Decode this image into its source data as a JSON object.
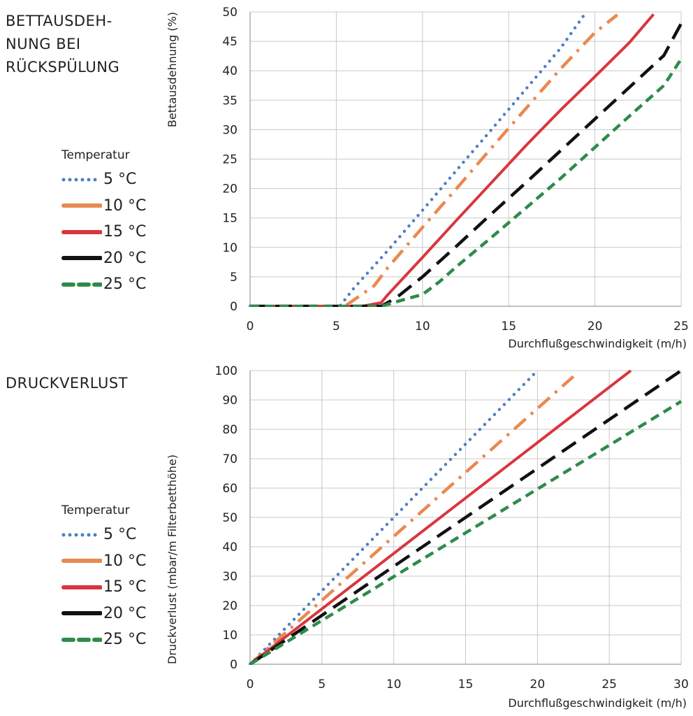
{
  "sections": [
    {
      "title": "BETTAUSDEH-\nNUNG BEI\nRÜCKSPÜLUNG",
      "legend_title": "Temperatur",
      "legend": [
        "5 °C",
        "10 °C",
        "15 °C",
        "20 °C",
        "25 °C"
      ]
    },
    {
      "title": "DRUCKVERLUST",
      "legend_title": "Temperatur",
      "legend": [
        "5 °C",
        "10 °C",
        "15 °C",
        "20 °C",
        "25 °C"
      ]
    }
  ],
  "styles": [
    {
      "color": "#4f7fc0",
      "dash": "dot"
    },
    {
      "color": "#e9894f",
      "dash": "dashdot"
    },
    {
      "color": "#d9363e",
      "dash": "solid"
    },
    {
      "color": "#111111",
      "dash": "dash"
    },
    {
      "color": "#2e8b4a",
      "dash": "shortdash"
    }
  ],
  "chart_data": [
    {
      "type": "line",
      "xlabel": "Durchflußgeschwindigkeit (m/h)",
      "ylabel": "Bettausdehnung (%)",
      "xlim": [
        0,
        25
      ],
      "ylim": [
        0,
        50
      ],
      "xticks": [
        0,
        5,
        10,
        15,
        20,
        25
      ],
      "yticks": [
        0,
        5,
        10,
        15,
        20,
        25,
        30,
        35,
        40,
        45,
        50
      ],
      "grid": true,
      "series": [
        {
          "name": "5 °C",
          "x": [
            0,
            5.2,
            6,
            8,
            10,
            12,
            14,
            16,
            18,
            19.5
          ],
          "y": [
            0,
            0,
            3,
            9.5,
            16.3,
            23.2,
            30,
            36.9,
            43.8,
            50
          ]
        },
        {
          "name": "10 °C",
          "x": [
            0,
            5.5,
            7.2,
            8,
            10,
            12,
            14,
            16,
            18,
            20,
            21.3
          ],
          "y": [
            0,
            0,
            3.5,
            6.6,
            13.4,
            20.1,
            26.9,
            33.6,
            40.3,
            46.5,
            49.5
          ]
        },
        {
          "name": "15 °C",
          "x": [
            0,
            6.5,
            7.6,
            8,
            10,
            12,
            14,
            16,
            18,
            20,
            22,
            23.4
          ],
          "y": [
            0,
            0,
            0.6,
            2,
            8.3,
            14.7,
            21,
            27.3,
            33.3,
            39,
            44.8,
            49.6
          ]
        },
        {
          "name": "20 °C",
          "x": [
            0,
            7.6,
            8.5,
            10,
            12,
            14,
            16,
            18,
            20,
            22,
            24,
            25
          ],
          "y": [
            0,
            0,
            1.5,
            5,
            10.3,
            15.7,
            21,
            26.4,
            31.8,
            37.2,
            42.6,
            48
          ]
        },
        {
          "name": "25 °C",
          "x": [
            0,
            7.6,
            9,
            10,
            11,
            12,
            14,
            16,
            18,
            20,
            22,
            24,
            25
          ],
          "y": [
            0,
            0,
            1.2,
            2,
            4.2,
            6.8,
            11.7,
            16.7,
            21.7,
            27,
            32.3,
            37.5,
            42
          ]
        }
      ]
    },
    {
      "type": "line",
      "xlabel": "Durchflußgeschwindigkeit (m/h)",
      "ylabel": "Druckverlust  (mbar/m Filterbetthöhe)",
      "xlim": [
        0,
        30
      ],
      "ylim": [
        0,
        100
      ],
      "xticks": [
        0,
        5,
        10,
        15,
        20,
        25,
        30
      ],
      "yticks": [
        0,
        10,
        20,
        30,
        40,
        50,
        60,
        70,
        80,
        90,
        100
      ],
      "grid": true,
      "series": [
        {
          "name": "5 °C",
          "x": [
            0,
            20
          ],
          "y": [
            0,
            100
          ]
        },
        {
          "name": "10 °C",
          "x": [
            0,
            22.5
          ],
          "y": [
            0,
            98
          ]
        },
        {
          "name": "15 °C",
          "x": [
            0,
            26.5
          ],
          "y": [
            0,
            100
          ]
        },
        {
          "name": "20 °C",
          "x": [
            0,
            30
          ],
          "y": [
            0,
            100
          ]
        },
        {
          "name": "25 °C",
          "x": [
            0,
            30
          ],
          "y": [
            0,
            89.5
          ]
        }
      ]
    }
  ]
}
